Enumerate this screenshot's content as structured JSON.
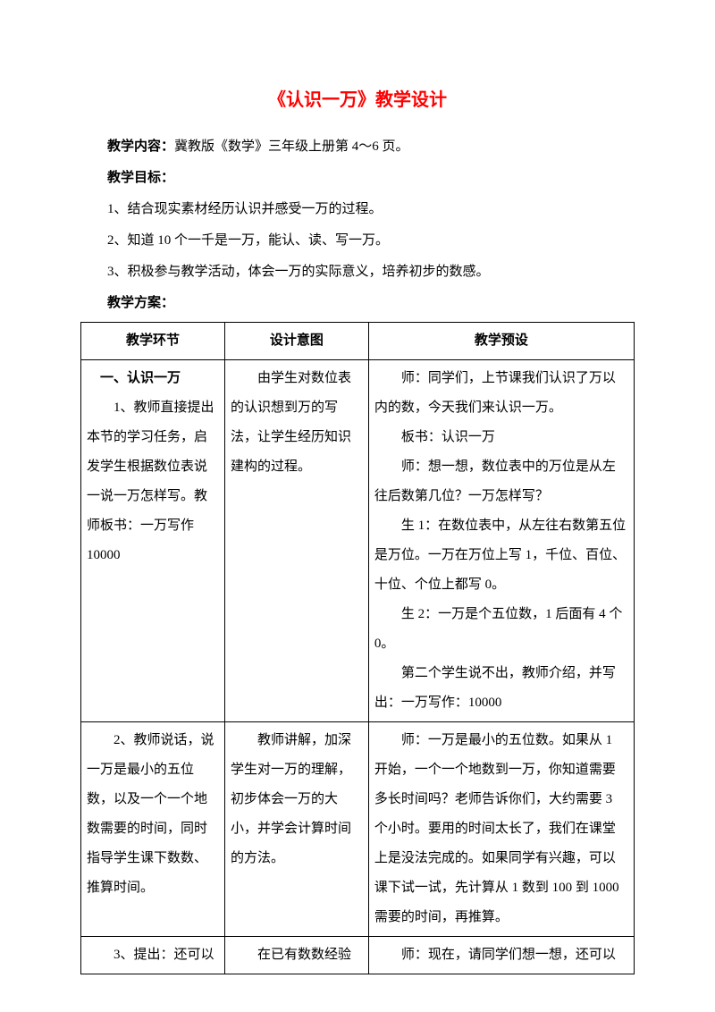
{
  "title": "《认识一万》教学设计",
  "intro": {
    "content_label": "教学内容：",
    "content_text": "冀教版《数学》三年级上册第 4～6 页。",
    "goal_label": "教学目标：",
    "goals": [
      "1、结合现实素材经历认识并感受一万的过程。",
      "2、知道 10 个一千是一万，能认、读、写一万。",
      "3、积极参与教学活动，体会一万的实际意义，培养初步的数感。"
    ],
    "plan_label": "教学方案："
  },
  "table": {
    "headers": [
      "教学环节",
      "设计意图",
      "教学预设"
    ],
    "rows": [
      {
        "c1_lines": [
          "　一、认识一万",
          "　　1、教师直接提出本节的学习任务，启发学生根据数位表说一说一万怎样写。教师板书：一万写作10000"
        ],
        "c2_lines": [
          "　　由学生对数位表的认识想到万的写法，让学生经历知识建构的过程。"
        ],
        "c3_lines": [
          "　　师：同学们，上节课我们认识了万以内的数，今天我们来认识一万。",
          "　　板书：认识一万",
          "　　师：想一想，数位表中的万位是从左往后数第几位？一万怎样写？",
          "　　生 1：在数位表中，从左往右数第五位是万位。一万在万位上写 1，千位、百位、十位、个位上都写 0。",
          "　　生 2：一万是个五位数，1 后面有 4 个 0。",
          "　　第二个学生说不出，教师介绍，并写出：一万写作：10000"
        ]
      },
      {
        "c1_lines": [
          "　　2、教师说话，说一万是最小的五位数，以及一个一个地数需要的时间，同时指导学生课下数数、推算时间。"
        ],
        "c2_lines": [
          "　　教师讲解，加深学生对一万的理解，初步体会一万的大小，并学会计算时间的方法。"
        ],
        "c3_lines": [
          "　　师：一万是最小的五位数。如果从 1 开始，一个一个地数到一万，你知道需要多长时间吗？老师告诉你们，大约需要 3 个小时。要用的时间太长了，我们在课堂上是没法完成的。如果同学有兴趣，可以课下试一试，先计算从 1 数到 100 到 1000 需要的时间，再推算。"
        ]
      },
      {
        "c1_lines": [
          "　　3、提出：还可以"
        ],
        "c2_lines": [
          "　　在已有数数经验"
        ],
        "c3_lines": [
          "　　师：现在，请同学们想一想，还可以"
        ]
      }
    ]
  }
}
